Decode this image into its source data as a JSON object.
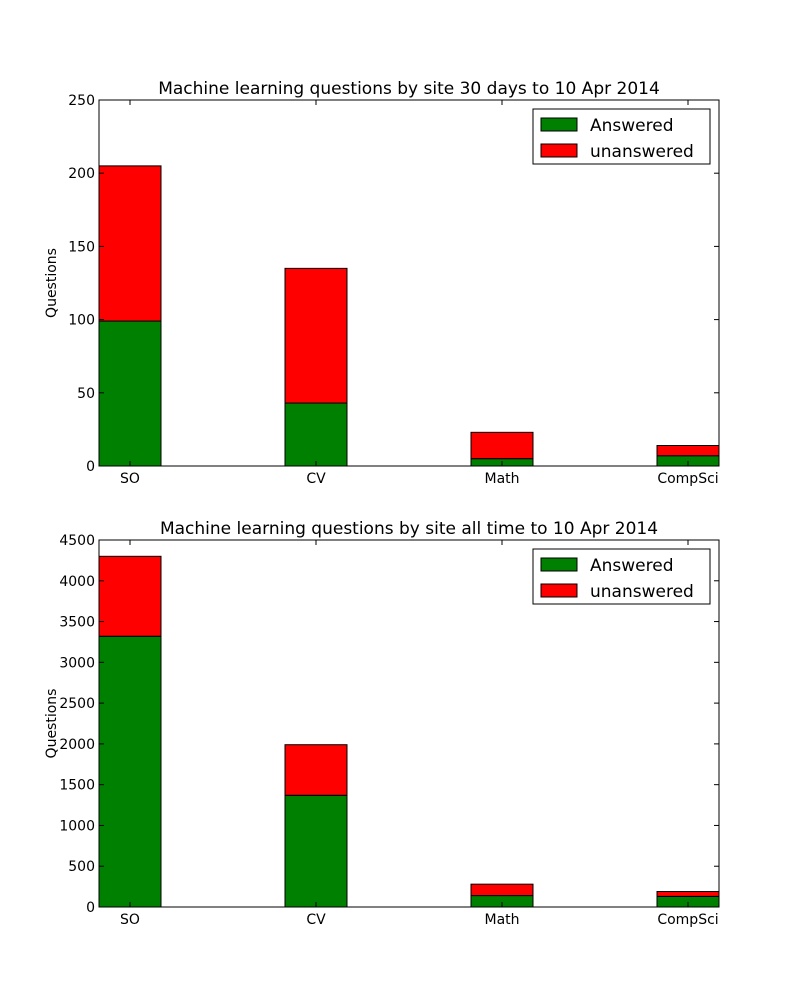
{
  "chart_data": [
    {
      "type": "bar",
      "stacked": true,
      "title": "Machine learning questions by site 30 days to 10 Apr 2014",
      "xlabel": "",
      "ylabel": "Questions",
      "categories": [
        "SO",
        "CV",
        "Math",
        "CompSci"
      ],
      "ylim": [
        0,
        250
      ],
      "yticks": [
        "0",
        "50",
        "100",
        "150",
        "200",
        "250"
      ],
      "legend_position": "top-right",
      "grid": false,
      "series": [
        {
          "name": "Answered",
          "color": "#008000",
          "values": [
            99,
            43,
            5,
            7
          ]
        },
        {
          "name": "unanswered",
          "color": "#ff0000",
          "values": [
            106,
            92,
            18,
            7
          ]
        }
      ]
    },
    {
      "type": "bar",
      "stacked": true,
      "title": "Machine learning questions by site all time to 10 Apr 2014",
      "xlabel": "",
      "ylabel": "Questions",
      "categories": [
        "SO",
        "CV",
        "Math",
        "CompSci"
      ],
      "ylim": [
        0,
        4500
      ],
      "yticks": [
        "0",
        "500",
        "1000",
        "1500",
        "2000",
        "2500",
        "3000",
        "3500",
        "4000",
        "4500"
      ],
      "legend_position": "top-right",
      "grid": false,
      "series": [
        {
          "name": "Answered",
          "color": "#008000",
          "values": [
            3320,
            1370,
            140,
            130
          ]
        },
        {
          "name": "unanswered",
          "color": "#ff0000",
          "values": [
            980,
            620,
            140,
            60
          ]
        }
      ]
    }
  ]
}
